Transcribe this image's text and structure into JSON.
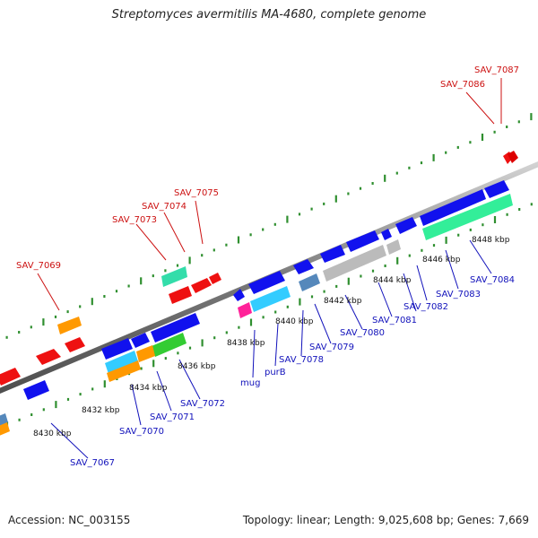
{
  "title": "Streptomyces avermitilis MA-4680, complete genome",
  "footer": {
    "accession": "Accession: NC_003155",
    "stats": "Topology: linear; Length: 9,025,608 bp; Genes: 7,669"
  },
  "colors": {
    "backbone": "#8a8a8a",
    "tick": "#2f8f2f",
    "label_top": "#cc1111",
    "label_bottom": "#1111bb",
    "scale_text": "#111111"
  },
  "scale_labels": [
    "8430 kbp",
    "8432 kbp",
    "8434 kbp",
    "8436 kbp",
    "8438 kbp",
    "8440 kbp",
    "8442 kbp",
    "8444 kbp",
    "8446 kbp",
    "8448 kbp"
  ],
  "top_gene_labels": [
    "SAV_7087",
    "SAV_7086",
    "SAV_7075",
    "SAV_7074",
    "SAV_7073",
    "SAV_7069"
  ],
  "bottom_gene_labels": [
    "SAV_7084",
    "SAV_7083",
    "SAV_7082",
    "SAV_7081",
    "SAV_7080",
    "SAV_7079",
    "SAV_7078",
    "purB",
    "mug",
    "SAV_7072",
    "SAV_7071",
    "SAV_7070",
    "SAV_7067"
  ]
}
